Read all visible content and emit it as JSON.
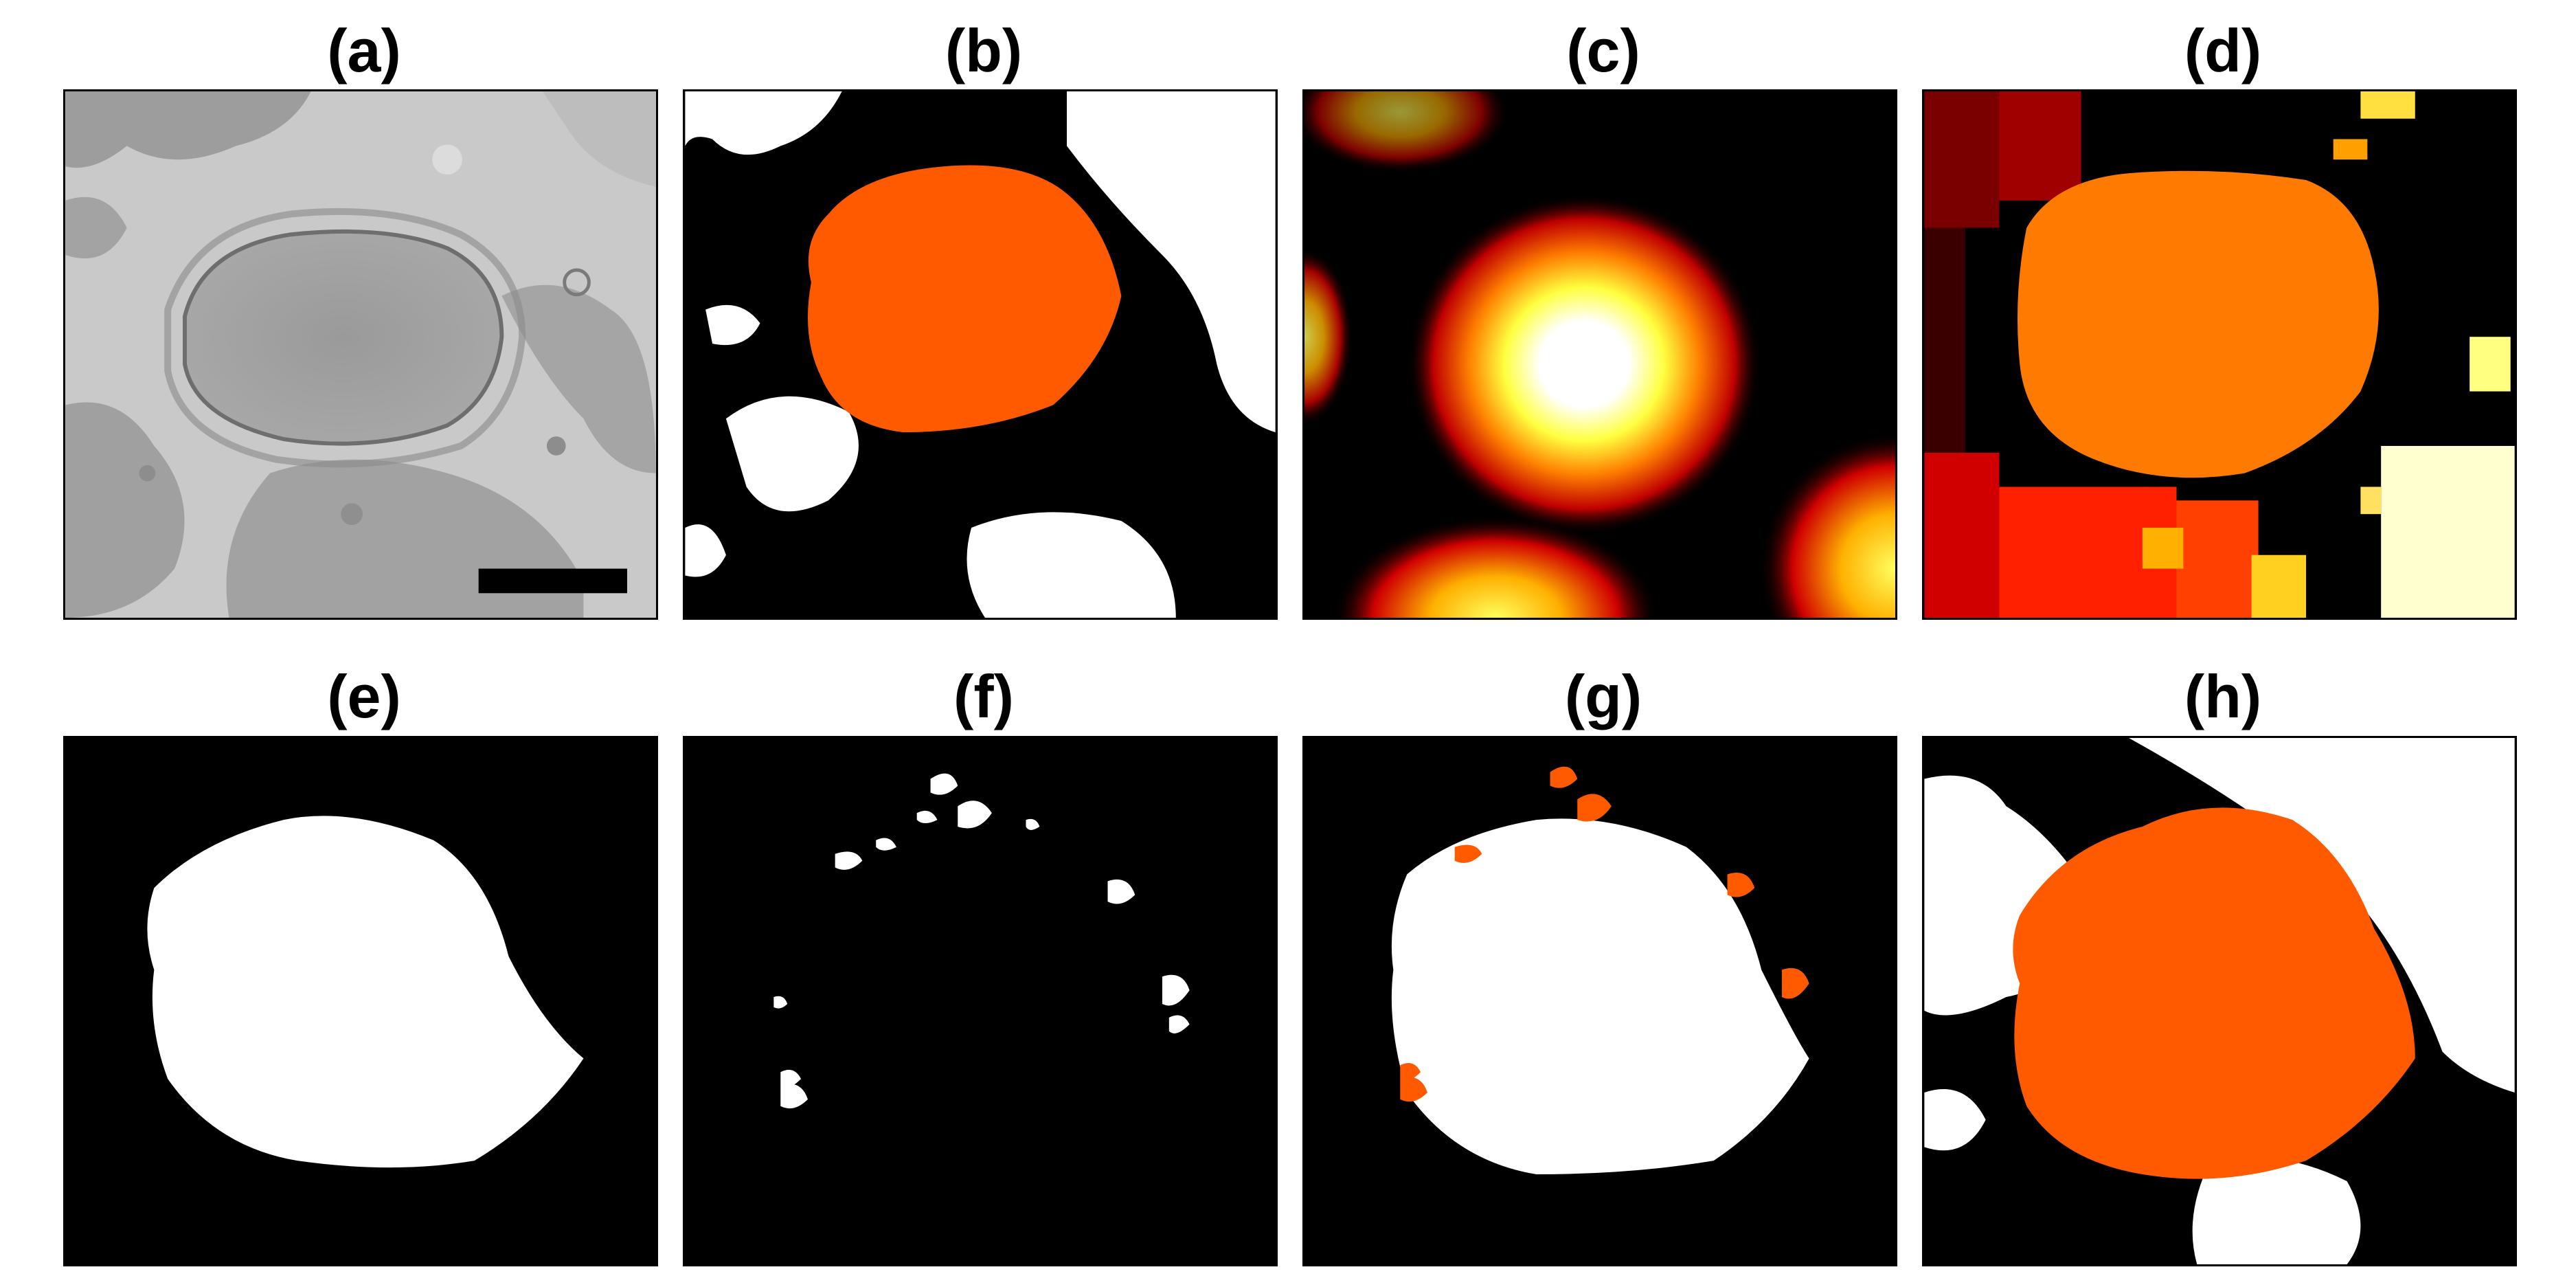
{
  "figure": {
    "panels": [
      {
        "id": "a",
        "label": "(a)",
        "content": "grayscale-micrograph"
      },
      {
        "id": "b",
        "label": "(b)",
        "content": "binary-mask-with-orange-nucleus"
      },
      {
        "id": "c",
        "label": "(c)",
        "content": "distance-transform-heatmap"
      },
      {
        "id": "d",
        "label": "(d)",
        "content": "watershed-regions"
      },
      {
        "id": "e",
        "label": "(e)",
        "content": "nucleus-mask"
      },
      {
        "id": "f",
        "label": "(f)",
        "content": "small-boundary-fragments"
      },
      {
        "id": "g",
        "label": "(g)",
        "content": "mask-with-orange-fragments"
      },
      {
        "id": "h",
        "label": "(h)",
        "content": "final-segmentation"
      }
    ],
    "colors": {
      "nucleus_orange": "#ff5a00",
      "watershed_orange": "#ff7a00",
      "foreground": "#ffffff",
      "background": "#000000",
      "micrograph_gray": "#b4b4b4"
    }
  }
}
